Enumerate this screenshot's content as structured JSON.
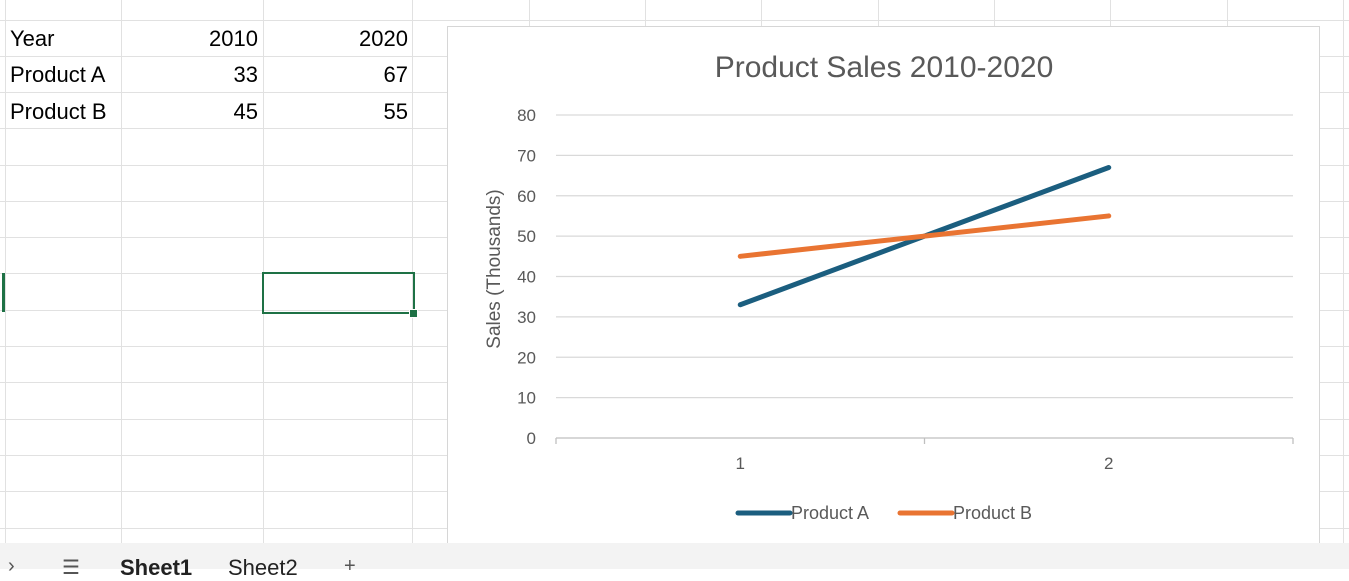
{
  "sheet": {
    "table": {
      "header": [
        "Year",
        "2010",
        "2020"
      ],
      "rows": [
        [
          "Product A",
          "33",
          "67"
        ],
        [
          "Product B",
          "45",
          "55"
        ]
      ]
    }
  },
  "chart_data": {
    "type": "line",
    "title": "Product Sales 2010-2020",
    "xlabel": "",
    "ylabel": "Sales (Thousands)",
    "categories": [
      "1",
      "2"
    ],
    "series": [
      {
        "name": "Product A",
        "values": [
          33,
          67
        ],
        "color": "#1b5e7f"
      },
      {
        "name": "Product B",
        "values": [
          45,
          55
        ],
        "color": "#e97432"
      }
    ],
    "ylim": [
      0,
      80
    ],
    "yticks": [
      0,
      10,
      20,
      30,
      40,
      50,
      60,
      70,
      80
    ],
    "grid": true,
    "legend": "bottom"
  },
  "tabs": {
    "nav_icon": "chevron-right-icon",
    "menu_icon": "hamburger-menu-icon",
    "items": [
      "Sheet1",
      "Sheet2"
    ],
    "active": "Sheet1",
    "add_label": "+"
  },
  "colors": {
    "selection": "#1e7145",
    "gridline": "#e1e1e1"
  }
}
